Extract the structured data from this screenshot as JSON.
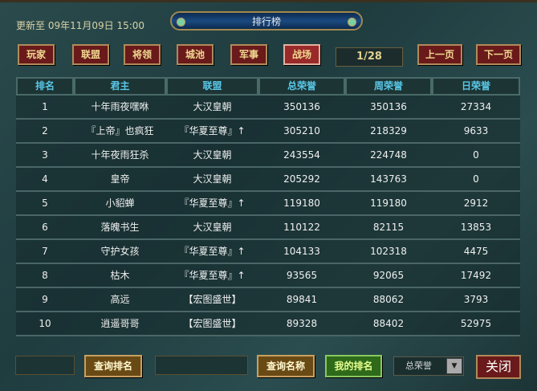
{
  "header": {
    "updated": "更新至 09年11月09日 15:00",
    "title": "排行榜"
  },
  "tabs": [
    {
      "label": "玩家"
    },
    {
      "label": "联盟"
    },
    {
      "label": "将领"
    },
    {
      "label": "城池"
    },
    {
      "label": "军事"
    },
    {
      "label": "战场",
      "active": true
    }
  ],
  "pager": {
    "page": "1/28",
    "prev": "上一页",
    "next": "下一页"
  },
  "table": {
    "columns": [
      "排名",
      "君主",
      "联盟",
      "总荣誉",
      "周荣誉",
      "日荣誉"
    ],
    "rows": [
      [
        "1",
        "十年雨夜嘿咻",
        "大汉皇朝",
        "350136",
        "350136",
        "27334"
      ],
      [
        "2",
        "『上帝』也疯狂",
        "『华夏至尊』↑",
        "305210",
        "218329",
        "9633"
      ],
      [
        "3",
        "十年夜雨狂杀",
        "大汉皇朝",
        "243554",
        "224748",
        "0"
      ],
      [
        "4",
        "皇帝",
        "大汉皇朝",
        "205292",
        "143763",
        "0"
      ],
      [
        "5",
        "小貂蝉",
        "『华夏至尊』↑",
        "119180",
        "119180",
        "2912"
      ],
      [
        "6",
        "落魄书生",
        "大汉皇朝",
        "110122",
        "82115",
        "13853"
      ],
      [
        "7",
        "守护女孩",
        "『华夏至尊』↑",
        "104133",
        "102318",
        "4475"
      ],
      [
        "8",
        "枯木",
        "『华夏至尊』↑",
        "93565",
        "92065",
        "17492"
      ],
      [
        "9",
        "高远",
        "【宏图盛世】",
        "89841",
        "88062",
        "3793"
      ],
      [
        "10",
        "逍遥哥哥",
        "【宏图盛世】",
        "89328",
        "88402",
        "52975"
      ]
    ]
  },
  "footer": {
    "rank_input": "",
    "query_rank": "查询排名",
    "name_input": "",
    "query_name": "查询名称",
    "my_rank": "我的排名",
    "sort_select": "总荣誉",
    "close": "关闭"
  }
}
